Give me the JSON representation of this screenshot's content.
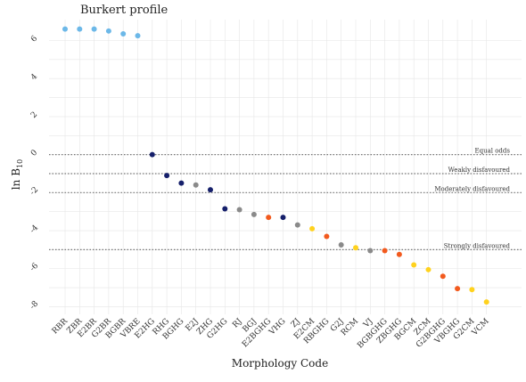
{
  "chart_data": {
    "type": "scatter",
    "title": "Burkert profile",
    "xlabel": "Morphology Code",
    "ylabel": "ln B",
    "ylabel_sub": "10",
    "ylim": [
      -8.4,
      7.1
    ],
    "yticks": [
      6,
      4,
      2,
      0,
      -2,
      -4,
      -6,
      -8
    ],
    "grid": true,
    "categories": [
      "RBR",
      "ZBR",
      "E2BR",
      "G2BR",
      "BGBR",
      "VBRE",
      "E2HG",
      "RHG",
      "BGHG",
      "E2J",
      "ZHG",
      "G2HG",
      "RJ",
      "BGJ",
      "E2BGHG",
      "VHG",
      "ZJ",
      "E2CM",
      "RBGHG",
      "G2J",
      "RCM",
      "VJ",
      "BGBGHG",
      "ZBGHG",
      "BGCM",
      "ZCM",
      "G2BGHG",
      "VBGHG",
      "G2CM",
      "VCM"
    ],
    "values": [
      6.6,
      6.6,
      6.6,
      6.5,
      6.35,
      6.25,
      0.0,
      -1.1,
      -1.5,
      -1.6,
      -1.85,
      -2.85,
      -2.9,
      -3.15,
      -3.3,
      -3.3,
      -3.7,
      -3.9,
      -4.3,
      -4.75,
      -4.9,
      -5.05,
      -5.05,
      -5.25,
      -5.8,
      -6.05,
      -6.4,
      -7.05,
      -7.1,
      -7.75
    ],
    "colors": [
      "#6cb8e8",
      "#6cb8e8",
      "#6cb8e8",
      "#6cb8e8",
      "#6cb8e8",
      "#6cb8e8",
      "#16206b",
      "#16206b",
      "#16206b",
      "#8a8a8a",
      "#16206b",
      "#16206b",
      "#8a8a8a",
      "#8a8a8a",
      "#f25a1e",
      "#16206b",
      "#8a8a8a",
      "#ffd21e",
      "#f25a1e",
      "#8a8a8a",
      "#ffd21e",
      "#8a8a8a",
      "#f25a1e",
      "#f25a1e",
      "#ffd21e",
      "#ffd21e",
      "#f25a1e",
      "#f25a1e",
      "#ffd21e",
      "#ffd21e"
    ],
    "reference_lines": [
      {
        "y": 0,
        "label": "Equal odds"
      },
      {
        "y": -1,
        "label": "Weakly disfavoured"
      },
      {
        "y": -2,
        "label": "Moderately disfavoured"
      },
      {
        "y": -5,
        "label": "Strongly disfavoured"
      }
    ]
  }
}
